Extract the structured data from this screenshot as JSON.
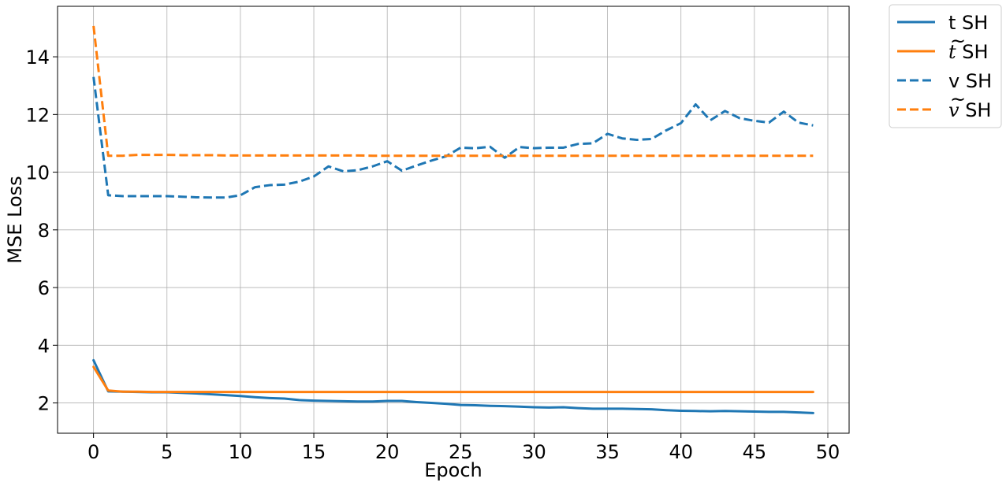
{
  "chart_data": {
    "type": "line",
    "title": "",
    "xlabel": "Epoch",
    "ylabel": "MSE Loss",
    "xlim": [
      -2.45,
      51.45
    ],
    "ylim": [
      0.95,
      15.75
    ],
    "xticks": [
      0,
      5,
      10,
      15,
      20,
      25,
      30,
      35,
      40,
      45,
      50
    ],
    "yticks": [
      2,
      4,
      6,
      8,
      10,
      12,
      14
    ],
    "grid": true,
    "legend_position": "outside-top-right",
    "series": [
      {
        "name": "t SH",
        "color": "#1f77b4",
        "linestyle": "solid",
        "values": [
          3.48,
          2.4,
          2.39,
          2.38,
          2.37,
          2.37,
          2.35,
          2.33,
          2.3,
          2.27,
          2.24,
          2.2,
          2.17,
          2.15,
          2.1,
          2.08,
          2.07,
          2.06,
          2.05,
          2.05,
          2.07,
          2.07,
          2.03,
          2.0,
          1.97,
          1.93,
          1.92,
          1.9,
          1.89,
          1.87,
          1.85,
          1.84,
          1.85,
          1.82,
          1.8,
          1.8,
          1.8,
          1.79,
          1.78,
          1.75,
          1.73,
          1.72,
          1.71,
          1.72,
          1.71,
          1.7,
          1.69,
          1.69,
          1.67,
          1.65
        ]
      },
      {
        "name": "t SH",
        "label_math": "t",
        "color": "#ff7f0e",
        "linestyle": "solid",
        "values": [
          3.25,
          2.43,
          2.39,
          2.39,
          2.38,
          2.38,
          2.38,
          2.38,
          2.38,
          2.38,
          2.38,
          2.38,
          2.38,
          2.38,
          2.38,
          2.38,
          2.38,
          2.38,
          2.38,
          2.38,
          2.38,
          2.38,
          2.38,
          2.38,
          2.38,
          2.38,
          2.38,
          2.38,
          2.38,
          2.38,
          2.38,
          2.38,
          2.38,
          2.38,
          2.38,
          2.38,
          2.38,
          2.38,
          2.38,
          2.38,
          2.38,
          2.38,
          2.38,
          2.38,
          2.38,
          2.38,
          2.38,
          2.38,
          2.38,
          2.38
        ]
      },
      {
        "name": "v SH",
        "color": "#1f77b4",
        "linestyle": "dashed",
        "values": [
          13.3,
          9.2,
          9.17,
          9.17,
          9.17,
          9.17,
          9.15,
          9.13,
          9.12,
          9.12,
          9.2,
          9.48,
          9.55,
          9.57,
          9.67,
          9.85,
          10.2,
          10.03,
          10.07,
          10.2,
          10.38,
          10.05,
          10.23,
          10.4,
          10.55,
          10.85,
          10.83,
          10.88,
          10.5,
          10.87,
          10.83,
          10.85,
          10.85,
          10.98,
          11.0,
          11.33,
          11.17,
          11.12,
          11.15,
          11.45,
          11.7,
          12.35,
          11.8,
          12.12,
          11.87,
          11.78,
          11.72,
          12.1,
          11.72,
          11.62
        ]
      },
      {
        "name": "v SH",
        "label_math": "v",
        "color": "#ff7f0e",
        "linestyle": "dashed",
        "values": [
          15.07,
          10.57,
          10.57,
          10.6,
          10.6,
          10.6,
          10.59,
          10.59,
          10.59,
          10.58,
          10.58,
          10.58,
          10.58,
          10.58,
          10.58,
          10.58,
          10.58,
          10.58,
          10.58,
          10.57,
          10.57,
          10.57,
          10.57,
          10.57,
          10.57,
          10.57,
          10.57,
          10.57,
          10.57,
          10.57,
          10.57,
          10.57,
          10.57,
          10.57,
          10.57,
          10.57,
          10.57,
          10.57,
          10.57,
          10.57,
          10.57,
          10.57,
          10.57,
          10.57,
          10.57,
          10.57,
          10.57,
          10.57,
          10.57,
          10.57
        ]
      }
    ]
  }
}
